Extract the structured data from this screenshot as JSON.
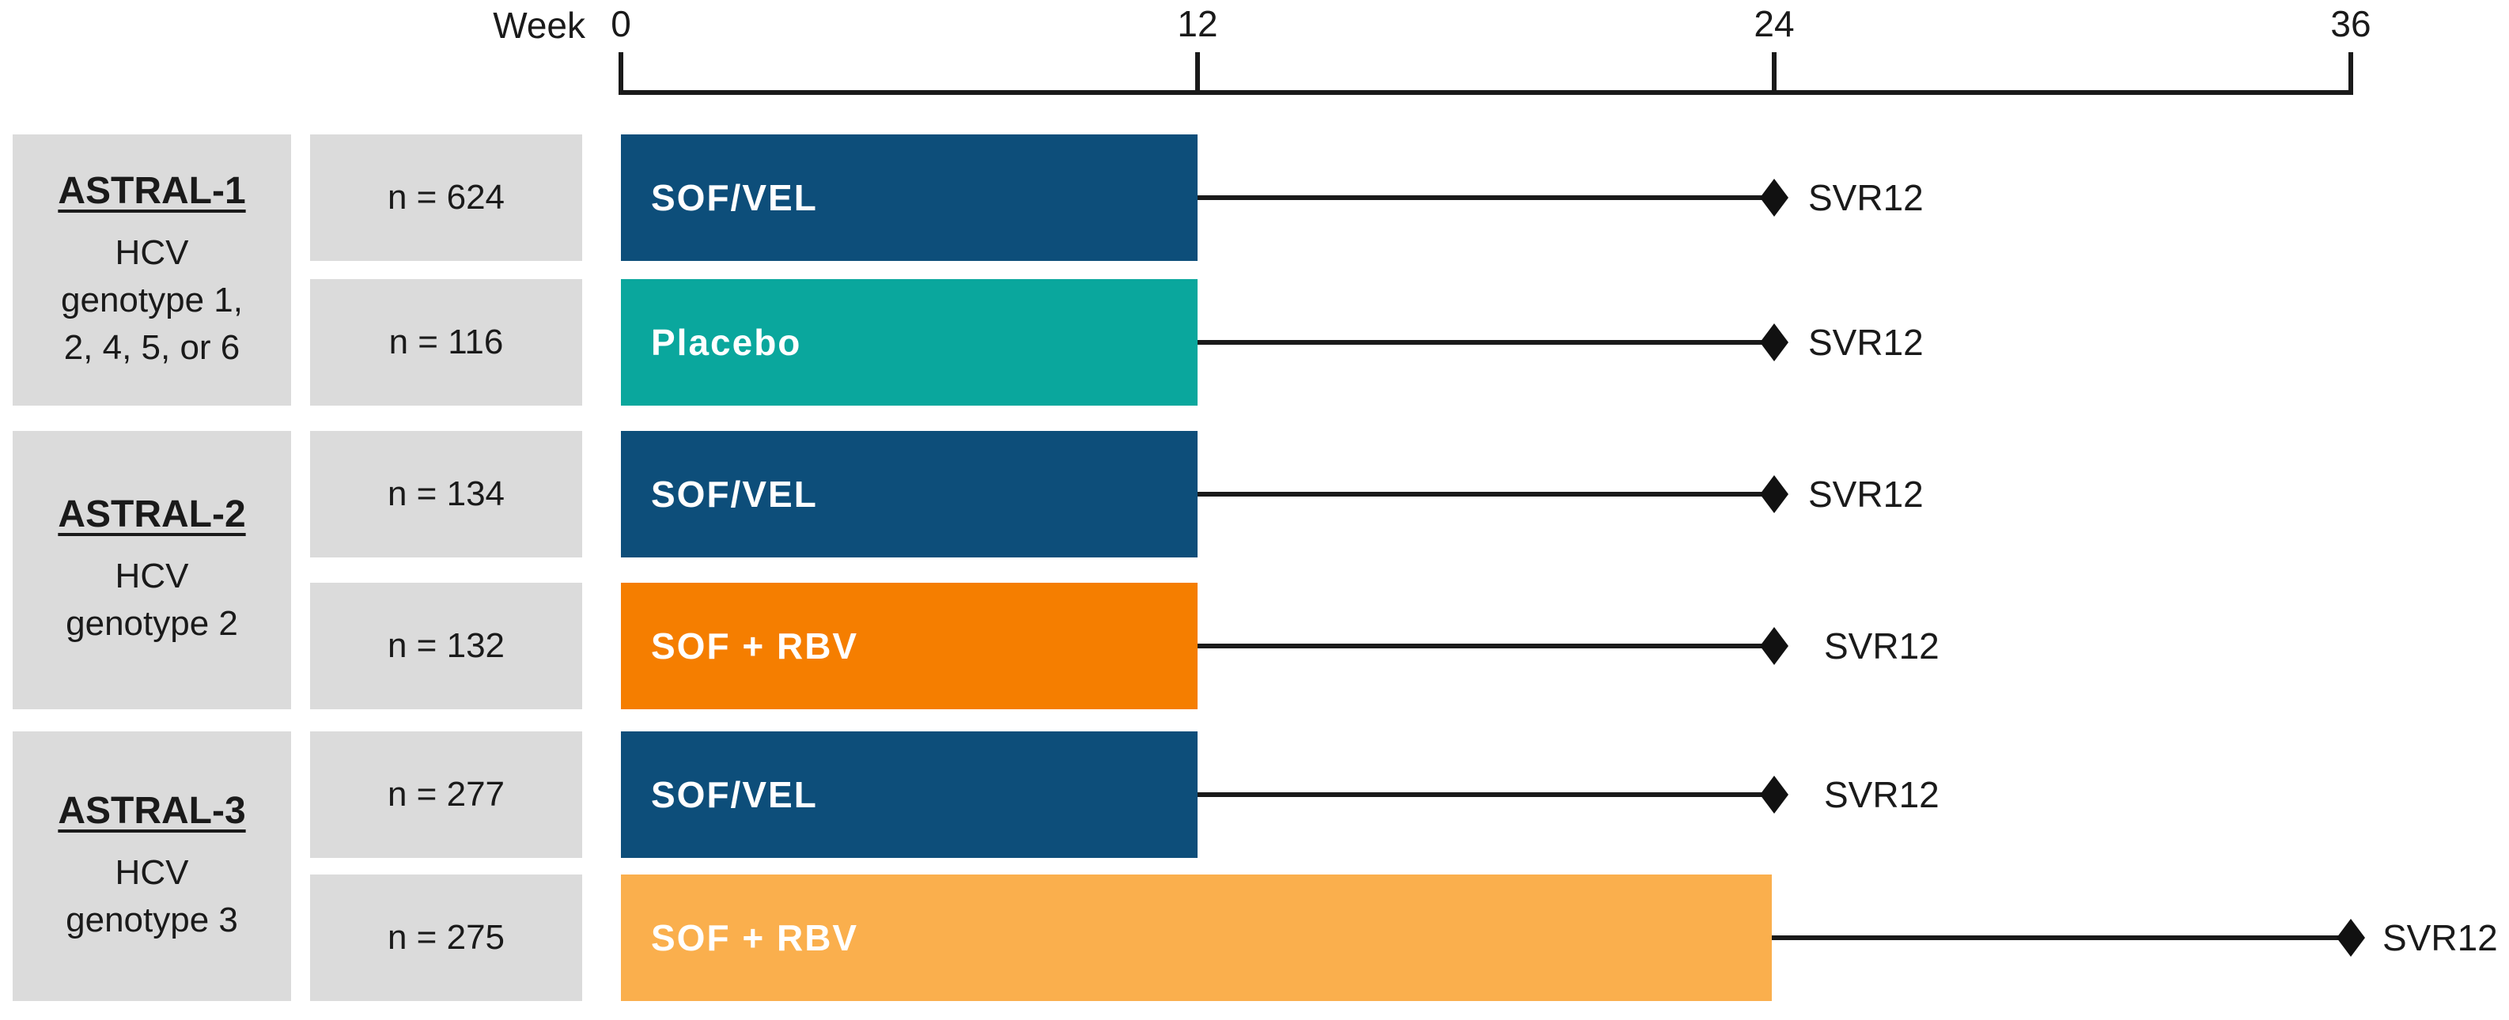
{
  "axis": {
    "week_label": "Week",
    "ticks": [
      {
        "label": "0",
        "week": 0
      },
      {
        "label": "12",
        "week": 12
      },
      {
        "label": "24",
        "week": 24
      },
      {
        "label": "36",
        "week": 36
      }
    ]
  },
  "colors": {
    "sof_vel_navy": "#0d4e7a",
    "placebo_teal": "#0aa79d",
    "sof_rbv_orange": "#f57e00",
    "sof_rbv_amber": "#faaf4d",
    "label_box_gray": "#dbdbdb",
    "line_black": "#1a1a1a"
  },
  "studies": [
    {
      "name": "ASTRAL-1",
      "population_lines": [
        "HCV",
        "genotype 1,",
        "2, 4, 5, or 6"
      ],
      "arms": [
        {
          "n_label": "n = 624",
          "treatment": "SOF/VEL",
          "color": "#0d4e7a",
          "treatment_start_week": 0,
          "treatment_end_week": 12,
          "svr12_assessment_week": 24,
          "endpoint": "SVR12"
        },
        {
          "n_label": "n = 116",
          "treatment": "Placebo",
          "color": "#0aa79d",
          "treatment_start_week": 0,
          "treatment_end_week": 12,
          "svr12_assessment_week": 24,
          "endpoint": "SVR12"
        }
      ]
    },
    {
      "name": "ASTRAL-2",
      "population_lines": [
        "HCV",
        "genotype 2"
      ],
      "arms": [
        {
          "n_label": "n = 134",
          "treatment": "SOF/VEL",
          "color": "#0d4e7a",
          "treatment_start_week": 0,
          "treatment_end_week": 12,
          "svr12_assessment_week": 24,
          "endpoint": "SVR12"
        },
        {
          "n_label": "n = 132",
          "treatment": "SOF + RBV",
          "color": "#f57e00",
          "treatment_start_week": 0,
          "treatment_end_week": 12,
          "svr12_assessment_week": 24,
          "endpoint": "SVR12"
        }
      ]
    },
    {
      "name": "ASTRAL-3",
      "population_lines": [
        "HCV",
        "genotype 3"
      ],
      "arms": [
        {
          "n_label": "n = 277",
          "treatment": "SOF/VEL",
          "color": "#0d4e7a",
          "treatment_start_week": 0,
          "treatment_end_week": 12,
          "svr12_assessment_week": 24,
          "endpoint": "SVR12"
        },
        {
          "n_label": "n = 275",
          "treatment": "SOF + RBV",
          "color": "#faaf4d",
          "treatment_start_week": 0,
          "treatment_end_week": 24,
          "svr12_assessment_week": 36,
          "endpoint": "SVR12"
        }
      ]
    }
  ]
}
